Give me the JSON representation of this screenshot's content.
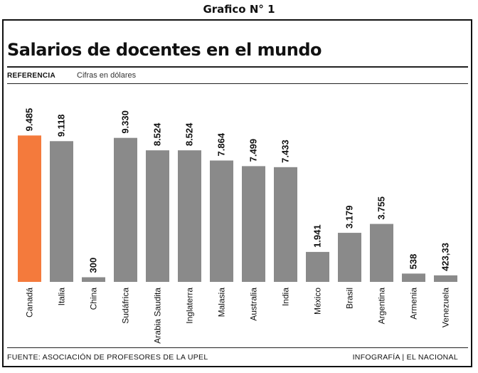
{
  "heading": "Grafico N° 1",
  "title": "Salarios de docentes en el mundo",
  "reference": {
    "label": "REFERENCIA",
    "text": "Cifras en dólares"
  },
  "footer": {
    "source": "FUENTE: ASOCIACIÓN DE PROFESORES DE LA UPEL",
    "credit": "INFOGRAFÍA | EL NACIONAL"
  },
  "colors": {
    "highlight": "#f47a3c",
    "bar": "#8a8a8a",
    "text": "#111111"
  },
  "chart_data": {
    "type": "bar",
    "title": "Salarios de docentes en el mundo",
    "xlabel": "",
    "ylabel": "",
    "unit": "dólares",
    "categories": [
      "Canadá",
      "Italia",
      "China",
      "Sudáfrica",
      "Arabia Saudita",
      "Inglaterra",
      "Malasia",
      "Australia",
      "India",
      "México",
      "Brasil",
      "Argentina",
      "Armenia",
      "Venezuela"
    ],
    "values": [
      9485,
      9118,
      300,
      9330,
      8524,
      8524,
      7864,
      7499,
      7433,
      1941,
      3179,
      3755,
      538,
      423.33
    ],
    "value_labels": [
      "9.485",
      "9.118",
      "300",
      "9.330",
      "8.524",
      "8.524",
      "7.864",
      "7.499",
      "7.433",
      "1.941",
      "3.179",
      "3.755",
      "538",
      "423,33"
    ],
    "highlight_index": 0,
    "ylim": [
      0,
      9500
    ],
    "grid": false,
    "legend": "none"
  }
}
